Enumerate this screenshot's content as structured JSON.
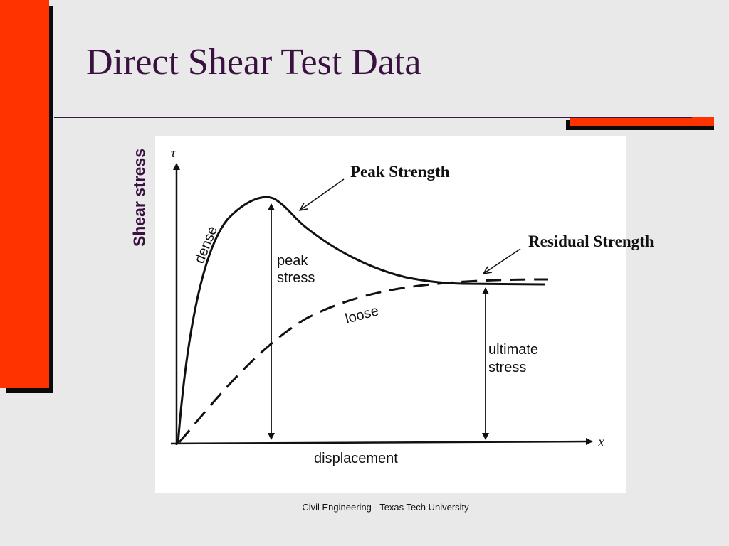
{
  "slide": {
    "title": "Direct Shear Test Data",
    "footer": "Civil Engineering - Texas Tech University",
    "theme": {
      "accent": "#ff3300",
      "title_color": "#3a1040",
      "rule_color": "#3d1644",
      "background": "#e9e9ea"
    }
  },
  "figure": {
    "y_caption": "Shear stress",
    "y_symbol": "τ",
    "x_symbol": "x",
    "x_label": "displacement",
    "curve_labels": {
      "dense": "dense",
      "loose": "loose"
    },
    "annotations": {
      "peak_stress": [
        "peak",
        "stress"
      ],
      "ultimate_stress": [
        "ultimate",
        "stress"
      ]
    },
    "callouts": {
      "peak": "Peak Strength",
      "residual": "Residual Strength"
    }
  }
}
